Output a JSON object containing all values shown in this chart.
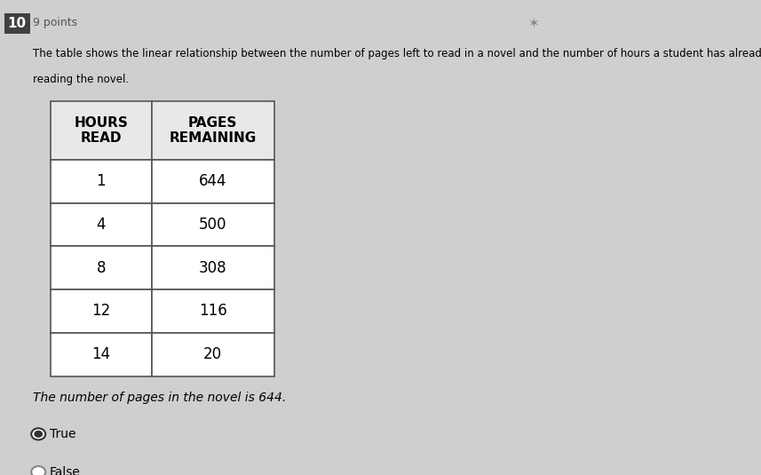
{
  "question_number": "10",
  "points": "9 points",
  "description_line1": "The table shows the linear relationship between the number of pages left to read in a novel and the number of hours a student has already spent",
  "description_line2": "reading the novel.",
  "col_headers": [
    "HOURS\nREAD",
    "PAGES\nREMAINING"
  ],
  "table_data": [
    [
      "1",
      "644"
    ],
    [
      "4",
      "500"
    ],
    [
      "8",
      "308"
    ],
    [
      "12",
      "116"
    ],
    [
      "14",
      "20"
    ]
  ],
  "question_text": "The number of pages in the novel is 644.",
  "options": [
    "True",
    "False"
  ],
  "selected_option": 0,
  "bg_color": "#d0cece",
  "table_bg": "#ffffff",
  "header_bg": "#e8e8e8",
  "text_color": "#000000",
  "qnum_bg": "#404040",
  "qnum_fg": "#ffffff",
  "font_size_points": 9,
  "font_size_desc": 8.5,
  "font_size_table": 12,
  "font_size_header": 11,
  "font_size_options": 10,
  "star_color": "#888888"
}
